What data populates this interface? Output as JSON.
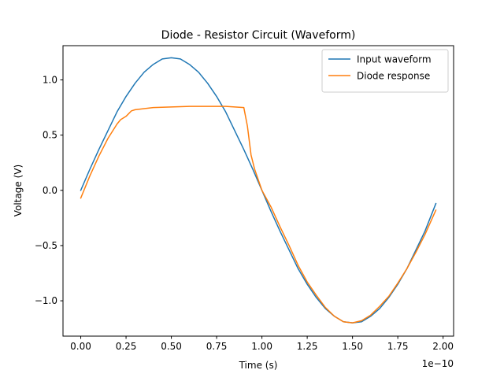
{
  "chart_data": {
    "type": "line",
    "title": "Diode - Resistor Circuit (Waveform)",
    "xlabel": "Time (s)",
    "ylabel": "Voltage (V)",
    "x_offset_label": "1e−10",
    "xlim": [
      -0.098,
      2.058
    ],
    "ylim": [
      -1.32,
      1.31
    ],
    "xticks": [
      0,
      0.25,
      0.5,
      0.75,
      1.0,
      1.25,
      1.5,
      1.75,
      2.0
    ],
    "xtick_labels": [
      "0.00",
      "0.25",
      "0.50",
      "0.75",
      "1.00",
      "1.25",
      "1.50",
      "1.75",
      "2.00"
    ],
    "yticks": [
      -1.0,
      -0.5,
      0.0,
      0.5,
      1.0
    ],
    "ytick_labels": [
      "−1.0",
      "−0.5",
      "0.0",
      "0.5",
      "1.0"
    ],
    "grid": false,
    "legend_position": "top-right",
    "series": [
      {
        "name": "Input waveform",
        "color": "#1f77b4",
        "x": [
          0,
          0.05,
          0.1,
          0.15,
          0.2,
          0.25,
          0.3,
          0.35,
          0.4,
          0.45,
          0.5,
          0.55,
          0.6,
          0.65,
          0.7,
          0.75,
          0.8,
          0.85,
          0.9,
          0.95,
          1.0,
          1.05,
          1.1,
          1.15,
          1.2,
          1.25,
          1.3,
          1.35,
          1.4,
          1.45,
          1.5,
          1.55,
          1.6,
          1.65,
          1.7,
          1.75,
          1.8,
          1.85,
          1.9,
          1.96
        ],
        "y": [
          0.0,
          0.19,
          0.37,
          0.54,
          0.71,
          0.85,
          0.97,
          1.07,
          1.14,
          1.19,
          1.2,
          1.19,
          1.14,
          1.07,
          0.97,
          0.85,
          0.71,
          0.54,
          0.37,
          0.19,
          0.0,
          -0.19,
          -0.37,
          -0.54,
          -0.71,
          -0.85,
          -0.97,
          -1.07,
          -1.14,
          -1.19,
          -1.2,
          -1.19,
          -1.14,
          -1.07,
          -0.97,
          -0.85,
          -0.71,
          -0.54,
          -0.37,
          -0.12
        ]
      },
      {
        "name": "Diode response",
        "color": "#ff7f0e",
        "x": [
          0,
          0.05,
          0.1,
          0.15,
          0.2,
          0.22,
          0.25,
          0.28,
          0.3,
          0.35,
          0.4,
          0.5,
          0.6,
          0.7,
          0.8,
          0.85,
          0.9,
          0.92,
          0.94,
          0.96,
          1.0,
          1.05,
          1.1,
          1.15,
          1.2,
          1.25,
          1.3,
          1.35,
          1.4,
          1.45,
          1.5,
          1.55,
          1.6,
          1.65,
          1.7,
          1.75,
          1.8,
          1.85,
          1.9,
          1.96
        ],
        "y": [
          -0.07,
          0.13,
          0.31,
          0.47,
          0.6,
          0.64,
          0.67,
          0.72,
          0.73,
          0.74,
          0.75,
          0.755,
          0.76,
          0.76,
          0.76,
          0.755,
          0.75,
          0.58,
          0.32,
          0.19,
          0.0,
          -0.15,
          -0.33,
          -0.5,
          -0.68,
          -0.83,
          -0.95,
          -1.06,
          -1.14,
          -1.19,
          -1.2,
          -1.18,
          -1.13,
          -1.05,
          -0.96,
          -0.84,
          -0.71,
          -0.56,
          -0.4,
          -0.18
        ]
      }
    ]
  }
}
